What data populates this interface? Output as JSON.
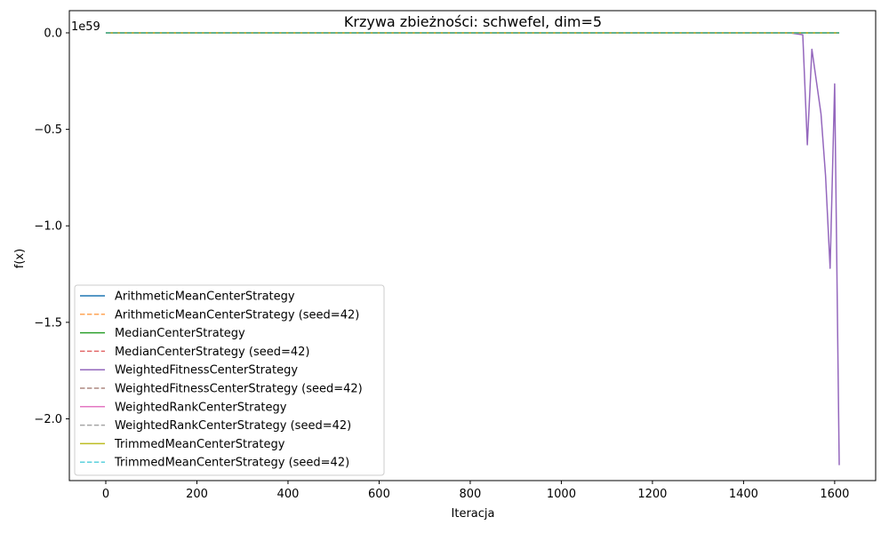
{
  "chart_data": {
    "type": "line",
    "title": "Krzywa zbieżności: schwefel, dim=5",
    "xlabel": "Iteracja",
    "ylabel": "f(x)",
    "y_offset_label": "1e59",
    "y_scale_note": "values in units of 1e59",
    "xlim": [
      -80,
      1690
    ],
    "ylim": [
      -2.32,
      0.115
    ],
    "x_ticks": [
      0,
      200,
      400,
      600,
      800,
      1000,
      1200,
      1400,
      1600
    ],
    "x_tick_labels": [
      "0",
      "200",
      "400",
      "600",
      "800",
      "1000",
      "1200",
      "1400",
      "1600"
    ],
    "y_ticks": [
      0.0,
      -0.5,
      -1.0,
      -1.5,
      -2.0
    ],
    "y_tick_labels": [
      "0.0",
      "−0.5",
      "−1.0",
      "−1.5",
      "−2.0"
    ],
    "grid": false,
    "legend_position": "lower-left",
    "series": [
      {
        "name": "ArithmeticMeanCenterStrategy",
        "color": "#1f77b4",
        "dash": "solid",
        "x": [
          0,
          1610
        ],
        "y": [
          0,
          0
        ]
      },
      {
        "name": "ArithmeticMeanCenterStrategy (seed=42)",
        "color": "#ff7f0e",
        "dash": "dashed",
        "x": [
          0,
          1610
        ],
        "y": [
          0,
          0
        ]
      },
      {
        "name": "MedianCenterStrategy",
        "color": "#2ca02c",
        "dash": "solid",
        "x": [
          0,
          1610
        ],
        "y": [
          0,
          0
        ]
      },
      {
        "name": "MedianCenterStrategy (seed=42)",
        "color": "#d62728",
        "dash": "dashed",
        "x": [
          0,
          1610
        ],
        "y": [
          0,
          0
        ]
      },
      {
        "name": "WeightedFitnessCenterStrategy",
        "color": "#9467bd",
        "dash": "solid",
        "x": [
          0,
          1500,
          1530,
          1540,
          1550,
          1570,
          1580,
          1590,
          1600,
          1610
        ],
        "y": [
          0,
          0,
          -0.01,
          -0.58,
          -0.085,
          -0.42,
          -0.74,
          -1.22,
          -0.265,
          -2.24
        ]
      },
      {
        "name": "WeightedFitnessCenterStrategy (seed=42)",
        "color": "#8c564b",
        "dash": "dashed",
        "x": [
          0,
          1610
        ],
        "y": [
          0,
          0
        ]
      },
      {
        "name": "WeightedRankCenterStrategy",
        "color": "#e377c2",
        "dash": "solid",
        "x": [
          0,
          1610
        ],
        "y": [
          0,
          0
        ]
      },
      {
        "name": "WeightedRankCenterStrategy (seed=42)",
        "color": "#7f7f7f",
        "dash": "dashed",
        "x": [
          0,
          1610
        ],
        "y": [
          0,
          0
        ]
      },
      {
        "name": "TrimmedMeanCenterStrategy",
        "color": "#bcbd22",
        "dash": "solid",
        "x": [
          0,
          1610
        ],
        "y": [
          0,
          0
        ]
      },
      {
        "name": "TrimmedMeanCenterStrategy (seed=42)",
        "color": "#17becf",
        "dash": "dashed",
        "x": [
          0,
          1610
        ],
        "y": [
          0,
          0
        ]
      }
    ]
  }
}
